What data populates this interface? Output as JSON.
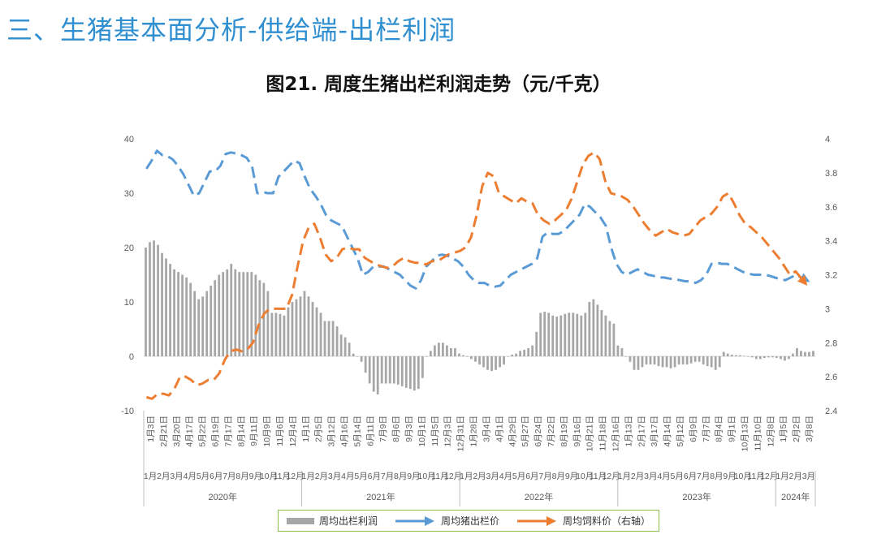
{
  "slide_title": "三、生猪基本面分析-供给端-出栏利润",
  "chart_data": {
    "type": "combo-bar-line",
    "title": "图21. 周度生猪出栏利润走势（元/千克）",
    "left_axis": {
      "min": -10,
      "max": 40,
      "ticks": [
        "-10",
        "0",
        "10",
        "20",
        "30",
        "40"
      ]
    },
    "right_axis": {
      "min": 2.4,
      "max": 4.0,
      "ticks": [
        "2.4",
        "2.6",
        "2.8",
        "3",
        "3.2",
        "3.4",
        "3.6",
        "3.8",
        "4"
      ]
    },
    "week_labels": [
      "1月3日",
      "2月21日",
      "3月20日",
      "4月17日",
      "5月22日",
      "6月19日",
      "7月17日",
      "8月14日",
      "9月11日",
      "10月9日",
      "11月6日",
      "12月4日",
      "1月1日",
      "2月5日",
      "3月12日",
      "4月16日",
      "5月14日",
      "6月11日",
      "7月9日",
      "8月6日",
      "9月3日",
      "10月1日",
      "11月5日",
      "12月3日",
      "12月31日",
      "1月28日",
      "3月4日",
      "4月1日",
      "4月29日",
      "5月27日",
      "6月24日",
      "7月22日",
      "8月19日",
      "9月16日",
      "10月21日",
      "11月18日",
      "12月16日",
      "1月13日",
      "2月17日",
      "3月17日",
      "4月14日",
      "5月12日",
      "6月9日",
      "7月7日",
      "8月4日",
      "9月1日",
      "10月13日",
      "11月10日",
      "12月8日",
      "1月5日",
      "2月2日",
      "3月8日"
    ],
    "month_labels": [
      "1月",
      "2月",
      "3月",
      "4月",
      "5月",
      "6月",
      "7月",
      "8月",
      "9月",
      "10月",
      "11月",
      "12月",
      "1月",
      "2月",
      "3月",
      "4月",
      "5月",
      "6月",
      "7月",
      "8月",
      "9月",
      "10月",
      "11月",
      "12月",
      "1月",
      "2月",
      "3月",
      "4月",
      "5月",
      "6月",
      "7月",
      "8月",
      "9月",
      "10月",
      "11月",
      "12月",
      "1月",
      "2月",
      "3月",
      "4月",
      "5月",
      "6月",
      "7月",
      "8月",
      "9月",
      "10月",
      "11月",
      "12月",
      "1月",
      "2月",
      "3月"
    ],
    "years": [
      {
        "label": "2020年",
        "months": 12
      },
      {
        "label": "2021年",
        "months": 12
      },
      {
        "label": "2022年",
        "months": 12
      },
      {
        "label": "2023年",
        "months": 12
      },
      {
        "label": "2024年",
        "months": 3
      }
    ],
    "series": [
      {
        "name": "周均出栏利润",
        "type": "bar",
        "axis": "left",
        "color": "#a6a6a6",
        "values": [
          20,
          21,
          21.3,
          20.5,
          19,
          18,
          17,
          16,
          15.5,
          15,
          14.5,
          13.5,
          12,
          10.5,
          11,
          12,
          13,
          14,
          15,
          15.5,
          16,
          17,
          16,
          15.5,
          15.5,
          15.5,
          15.5,
          15,
          14,
          13.5,
          12,
          8,
          8,
          7.8,
          7.5,
          9,
          10,
          10.5,
          11,
          12,
          11,
          10,
          9,
          8,
          6.5,
          6.5,
          6.5,
          5.5,
          4,
          3.5,
          2.5,
          0.5,
          0,
          -1,
          -3,
          -5,
          -6.5,
          -7,
          -5,
          -5,
          -5,
          -5,
          -5.2,
          -5.5,
          -5.8,
          -6,
          -6.3,
          -6,
          -4,
          0,
          1,
          2,
          2.5,
          2.5,
          2,
          1.5,
          1.5,
          0.5,
          0.2,
          0,
          -0.5,
          -1,
          -1.5,
          -2,
          -2.5,
          -2.7,
          -2.5,
          -2,
          -1.5,
          0,
          0.3,
          0.5,
          1,
          1.2,
          1.5,
          2,
          4.5,
          8,
          8.2,
          8,
          7.5,
          7.3,
          7.5,
          7.8,
          8,
          8,
          7.8,
          7.5,
          8,
          10,
          10.5,
          9.5,
          8.5,
          7.5,
          6.5,
          6,
          2,
          1.5,
          0,
          -1,
          -2.5,
          -2.5,
          -2,
          -1.5,
          -1.5,
          -1.5,
          -1.8,
          -2,
          -2,
          -2.2,
          -2,
          -1.5,
          -1.5,
          -1.5,
          -1.3,
          -1,
          -1,
          -1.5,
          -1.8,
          -2,
          -2.5,
          -2,
          0.8,
          0.5,
          0.3,
          0.2,
          0.2,
          0.1,
          0,
          -0.2,
          -0.5,
          -0.5,
          -0.3,
          -0.2,
          -0.2,
          -0.3,
          -0.5,
          -0.8,
          -0.5,
          0.5,
          1.5,
          1,
          0.8,
          0.8,
          1
        ]
      },
      {
        "name": "周均猪出栏价",
        "type": "line",
        "axis": "left",
        "color": "#5b9bd5",
        "values": [
          34.5,
          36,
          37.8,
          37,
          36.8,
          36.2,
          35,
          33.5,
          31.5,
          29.5,
          30,
          32,
          34,
          34,
          35,
          37.2,
          37.5,
          37.3,
          37,
          36.5,
          35,
          30,
          30.2,
          30,
          30,
          33,
          34,
          35,
          36,
          35.5,
          33,
          30.8,
          29.5,
          28,
          26,
          25,
          24.5,
          24,
          22,
          20,
          18,
          15,
          15.5,
          16.5,
          16.5,
          16.5,
          16,
          15.5,
          15,
          14,
          13,
          12.5,
          14,
          16.5,
          17.5,
          18.5,
          18.7,
          18.5,
          18,
          17.5,
          16.5,
          15,
          14,
          13.5,
          13.5,
          13,
          12.8,
          13,
          14,
          15,
          15.5,
          16,
          16.5,
          17,
          18,
          22,
          22.8,
          22.5,
          22.5,
          23,
          24,
          25,
          26,
          28,
          27.5,
          26.5,
          25.5,
          24,
          20,
          17,
          15.5,
          15,
          15.5,
          16,
          15.5,
          15,
          14.8,
          14.5,
          14.5,
          14.3,
          14.2,
          14,
          13.8,
          13.8,
          13.5,
          14,
          15,
          17,
          17.2,
          17,
          17,
          16.5,
          16,
          15.5,
          15.2,
          15,
          15,
          15,
          14.8,
          14.5,
          14.2,
          14,
          14.5,
          15,
          14.5
        ]
      },
      {
        "name": "周均饲料价（右轴）",
        "type": "line",
        "axis": "right",
        "color": "#ed7d31",
        "values": [
          2.48,
          2.47,
          2.5,
          2.5,
          2.49,
          2.53,
          2.6,
          2.6,
          2.58,
          2.55,
          2.56,
          2.58,
          2.58,
          2.62,
          2.7,
          2.75,
          2.76,
          2.75,
          2.76,
          2.8,
          2.9,
          2.97,
          3,
          3,
          3,
          3,
          3.08,
          3.25,
          3.4,
          3.48,
          3.5,
          3.42,
          3.32,
          3.28,
          3.3,
          3.35,
          3.36,
          3.35,
          3.35,
          3.3,
          3.28,
          3.26,
          3.25,
          3.24,
          3.25,
          3.28,
          3.3,
          3.28,
          3.27,
          3.27,
          3.26,
          3.28,
          3.28,
          3.3,
          3.32,
          3.33,
          3.34,
          3.36,
          3.42,
          3.55,
          3.72,
          3.8,
          3.78,
          3.68,
          3.66,
          3.64,
          3.62,
          3.65,
          3.63,
          3.62,
          3.55,
          3.52,
          3.5,
          3.52,
          3.55,
          3.58,
          3.65,
          3.75,
          3.85,
          3.9,
          3.92,
          3.88,
          3.75,
          3.68,
          3.67,
          3.66,
          3.64,
          3.6,
          3.55,
          3.5,
          3.46,
          3.43,
          3.45,
          3.47,
          3.45,
          3.44,
          3.43,
          3.44,
          3.48,
          3.52,
          3.54,
          3.56,
          3.6,
          3.66,
          3.68,
          3.62,
          3.55,
          3.5,
          3.48,
          3.45,
          3.42,
          3.38,
          3.34,
          3.3,
          3.25,
          3.2,
          3.22,
          3.18
        ]
      }
    ]
  },
  "legend": {
    "bar_label": "周均出栏利润",
    "price_label": "周均猪出栏价",
    "feed_label": "周均饲料价（右轴）"
  }
}
